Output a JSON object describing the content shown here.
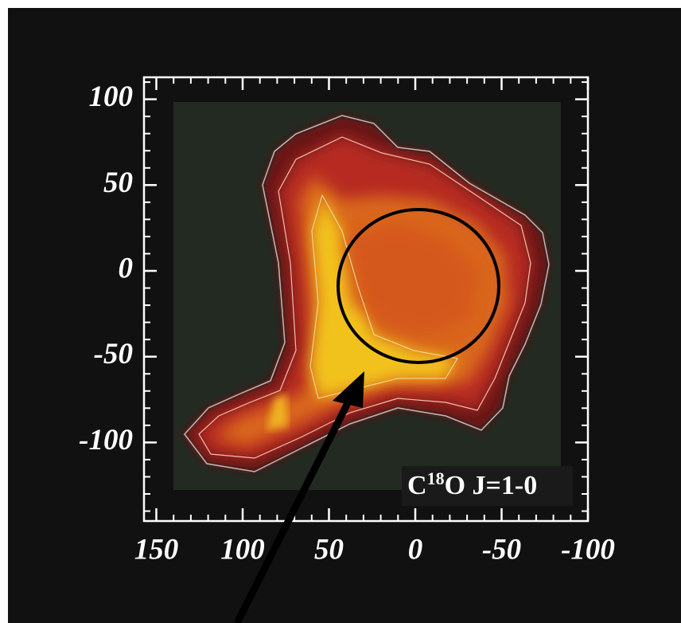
{
  "figure": {
    "yticks": [
      100,
      50,
      0,
      -50,
      -100
    ],
    "xticks": [
      150,
      100,
      50,
      0,
      -50,
      -100
    ],
    "annotation": {
      "species_before": "C",
      "isotope": "18",
      "species_after": "O J=1-0"
    }
  }
}
